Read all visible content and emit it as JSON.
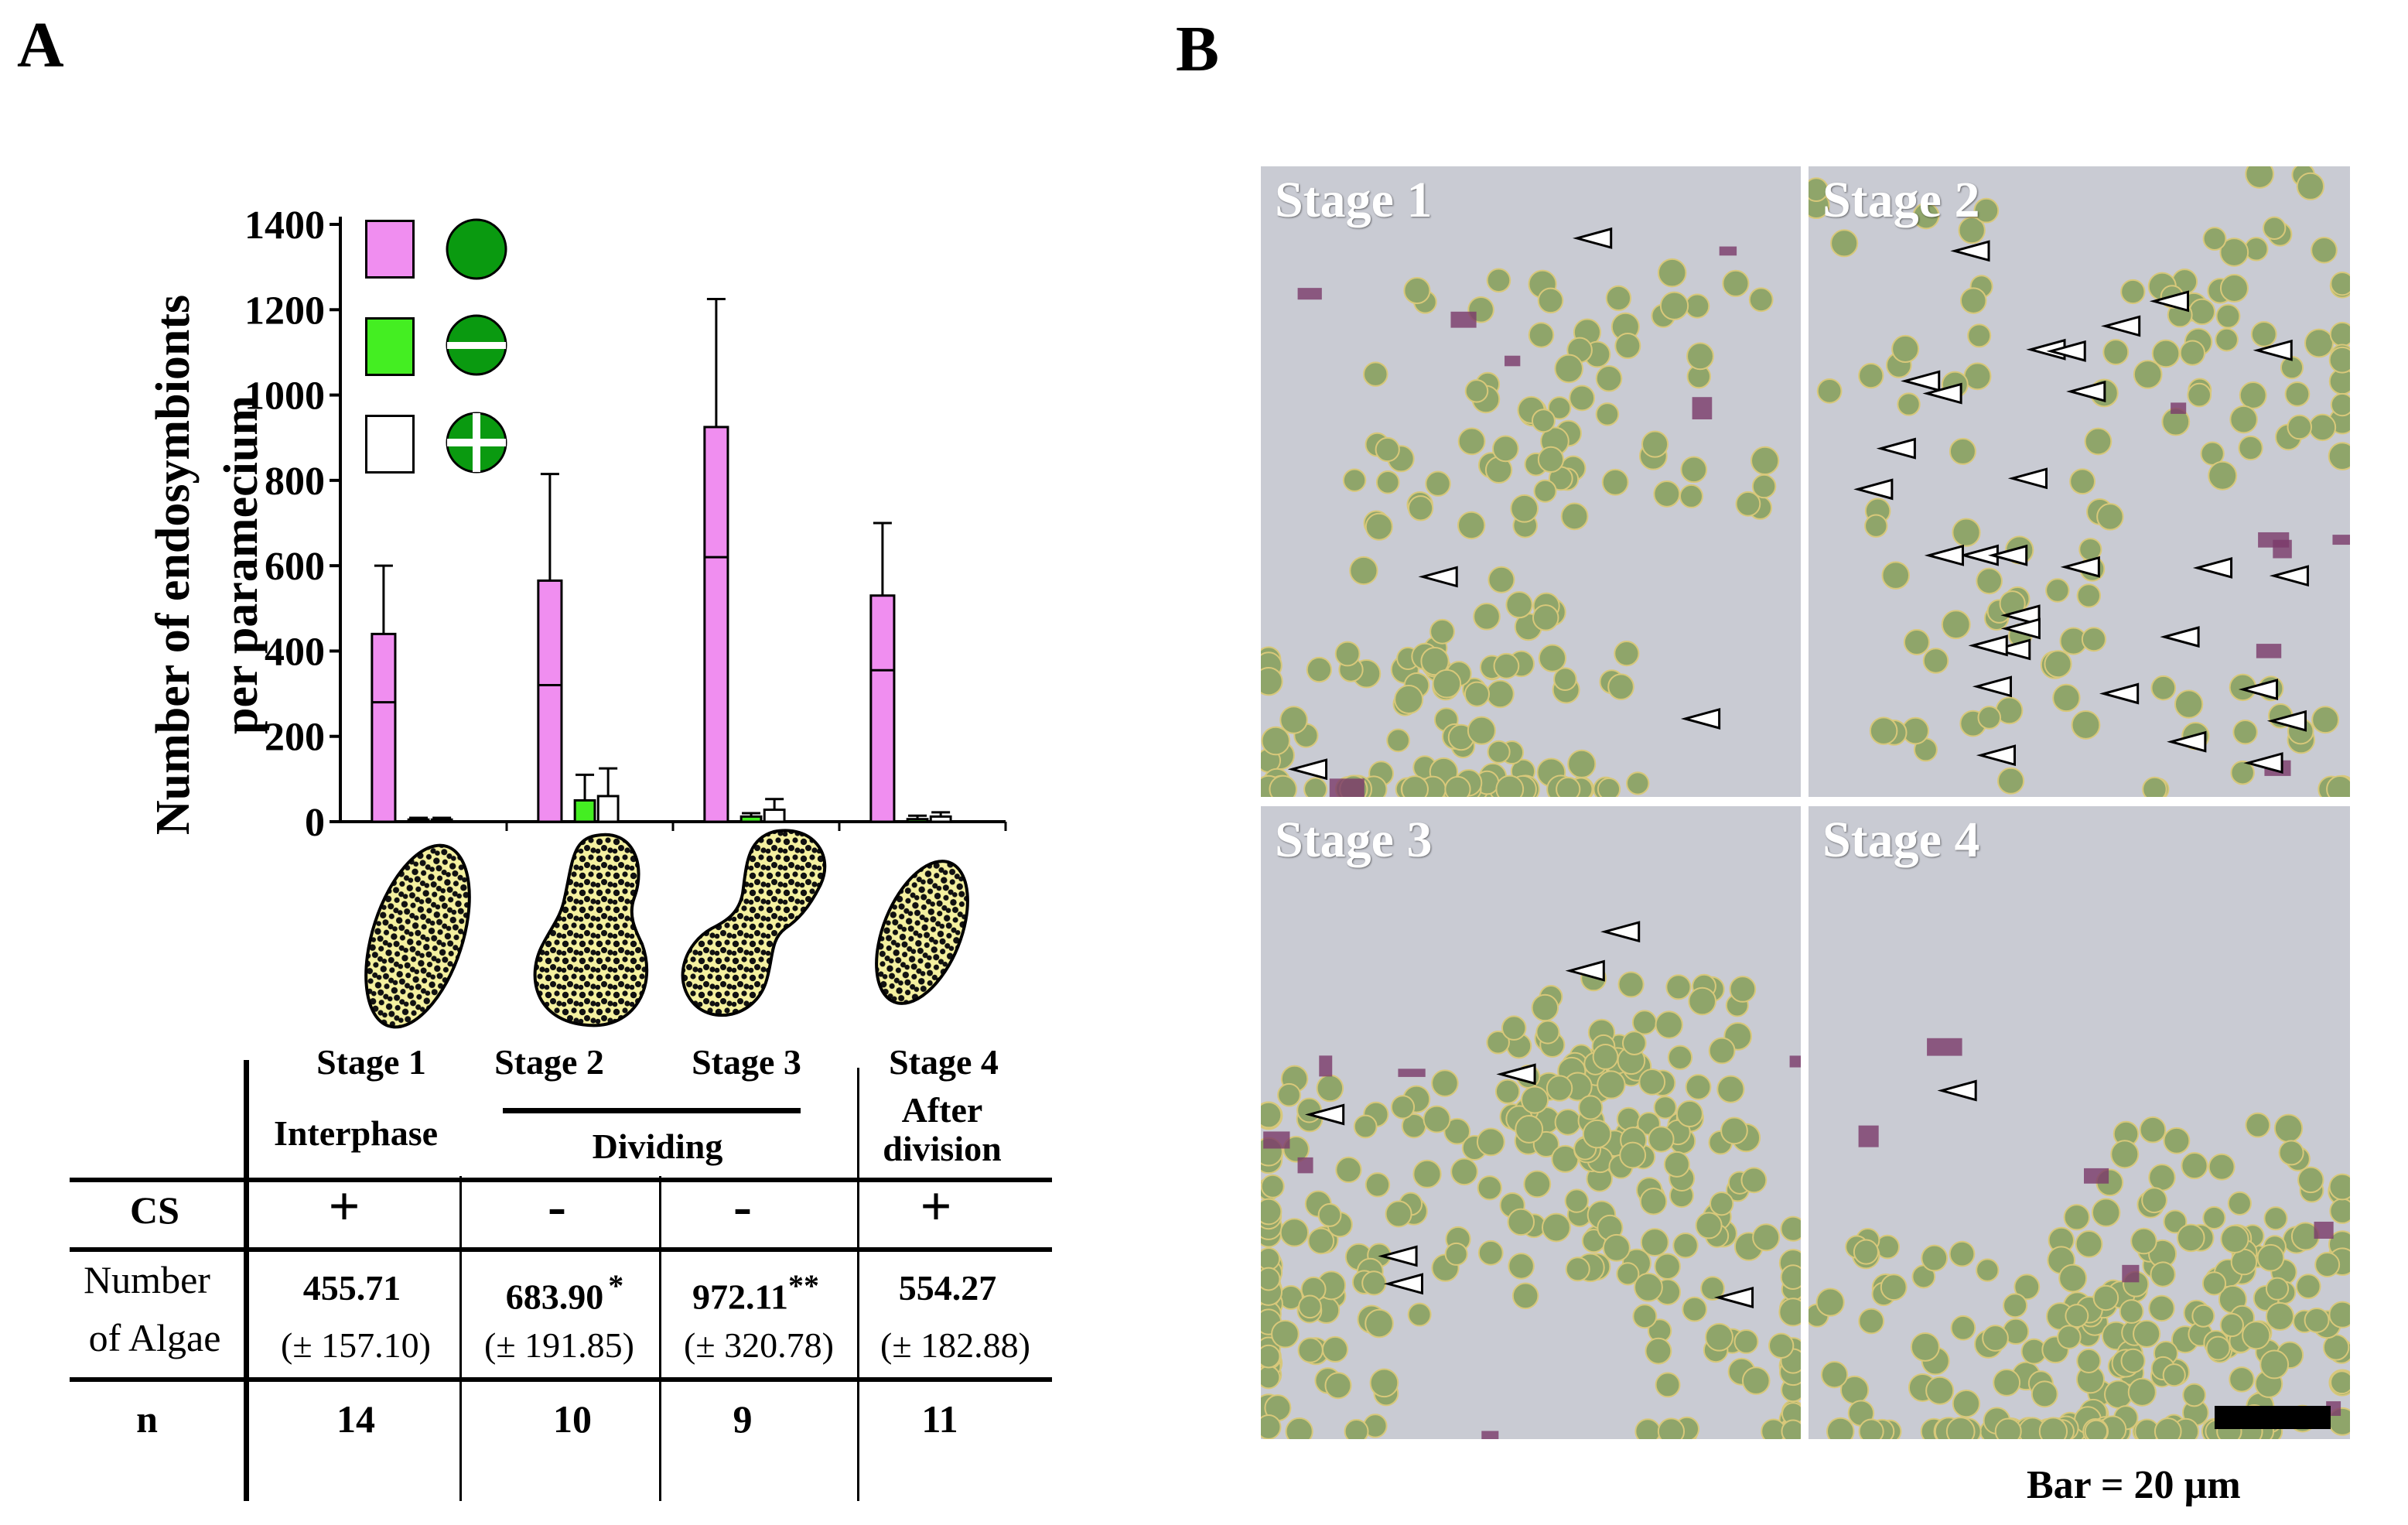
{
  "panel_a": {
    "letter": "A",
    "y_axis_label_line1": "Number of endosymbionts",
    "y_axis_label_line2": "per paramecium",
    "legend": [
      {
        "square_fill": "#f08ef0",
        "circle_type": "solid-green-circle"
      },
      {
        "square_fill": "#44ee22",
        "circle_type": "green-circle-horizontal-bar"
      },
      {
        "square_fill": "#ffffff",
        "circle_type": "green-circle-plus"
      }
    ],
    "table": {
      "stages": [
        "Stage 1",
        "Stage 2",
        "Stage 3",
        "Stage 4"
      ],
      "phases": [
        "Interphase",
        "Dividing",
        "After division"
      ],
      "row_labels": {
        "cs": "CS",
        "algae_line1": "Number",
        "algae_line2": "of Algae",
        "n": "n"
      },
      "cs_values": [
        "+",
        "-",
        "-",
        "+"
      ],
      "algae_means": [
        "455.71",
        "683.90",
        "972.11",
        "554.27"
      ],
      "algae_marks": [
        "",
        "*",
        "**",
        ""
      ],
      "algae_sd": [
        "(± 157.10)",
        "(± 191.85)",
        "(± 320.78)",
        "(± 182.88)"
      ],
      "n_values": [
        "14",
        "10",
        "9",
        "11"
      ]
    }
  },
  "chart_data": {
    "type": "bar",
    "categories": [
      "Stage 1",
      "Stage 2",
      "Stage 3",
      "Stage 4"
    ],
    "series": [
      {
        "fill": "#f08ef0",
        "values": [
          440,
          565,
          925,
          530
        ],
        "error": [
          160,
          250,
          300,
          170
        ],
        "inner_line": [
          280,
          320,
          620,
          355
        ]
      },
      {
        "fill": "#44ee22",
        "values": [
          5,
          50,
          12,
          6
        ],
        "error": [
          4,
          60,
          8,
          8
        ]
      },
      {
        "fill": "#ffffff",
        "values": [
          5,
          60,
          28,
          12
        ],
        "error": [
          4,
          65,
          25,
          10
        ]
      }
    ],
    "yticks": [
      0,
      200,
      400,
      600,
      800,
      1000,
      1200,
      1400
    ],
    "ylim": [
      0,
      1400
    ],
    "ylabel": "Number of endosymbionts per paramecium",
    "grid": false
  },
  "panel_b": {
    "letter": "B",
    "stage_labels": [
      "Stage 1",
      "Stage 2",
      "Stage 3",
      "Stage 4"
    ],
    "scale_bar_label": "Bar = 20 µm",
    "colors": {
      "background": "#c9cbd3",
      "algae": "#8fa56a",
      "stain": "#7a3a6a",
      "gap": "#ffffff"
    }
  }
}
